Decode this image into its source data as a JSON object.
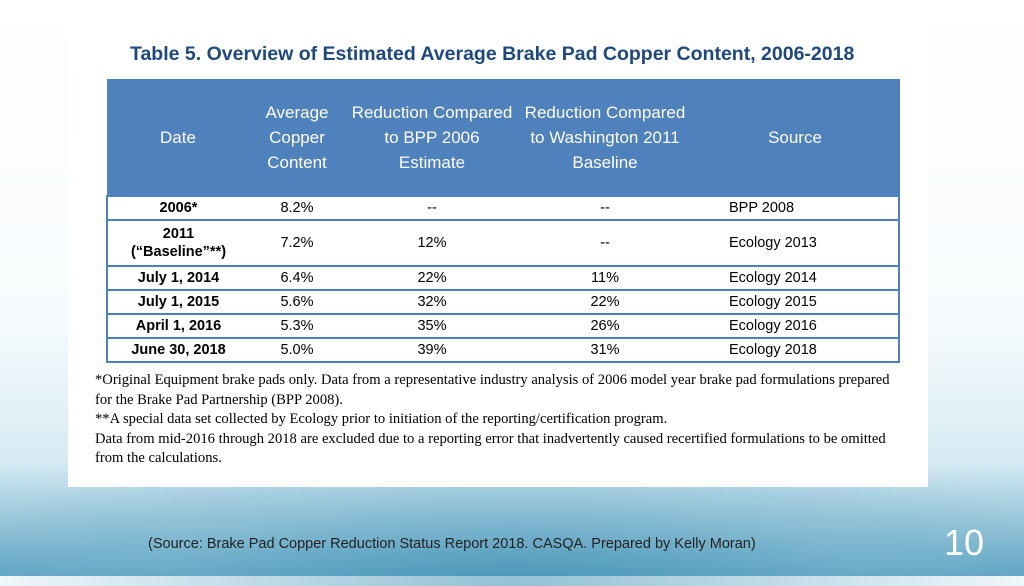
{
  "table": {
    "title": "Table 5.  Overview of Estimated Average Brake Pad Copper Content, 2006-2018",
    "headers": [
      "Date",
      "Average Copper Content",
      "Reduction Compared to BPP 2006 Estimate",
      "Reduction Compared to Washington 2011 Baseline",
      "Source"
    ],
    "rows": [
      {
        "date": "2006*",
        "date2": "",
        "avg": "8.2%",
        "red_bpp": "--",
        "red_wa": "--",
        "source": "BPP 2008"
      },
      {
        "date": "2011",
        "date2": "(“Baseline”**)",
        "avg": "7.2%",
        "red_bpp": "12%",
        "red_wa": "--",
        "source": "Ecology 2013"
      },
      {
        "date": "July 1, 2014",
        "date2": "",
        "avg": "6.4%",
        "red_bpp": "22%",
        "red_wa": "11%",
        "source": "Ecology 2014"
      },
      {
        "date": "July 1, 2015",
        "date2": "",
        "avg": "5.6%",
        "red_bpp": "32%",
        "red_wa": "22%",
        "source": "Ecology 2015"
      },
      {
        "date": "April 1, 2016",
        "date2": "",
        "avg": "5.3%",
        "red_bpp": "35%",
        "red_wa": "26%",
        "source": "Ecology 2016"
      },
      {
        "date": "June 30, 2018",
        "date2": "",
        "avg": "5.0%",
        "red_bpp": "39%",
        "red_wa": "31%",
        "source": "Ecology 2018"
      }
    ],
    "footnotes": [
      "*Original Equipment brake pads only. Data from a representative industry analysis of 2006 model year brake pad formulations prepared for the Brake Pad Partnership (BPP 2008).",
      "**A special data set collected by Ecology prior to initiation of the reporting/certification program.",
      "Data from mid-2016 through 2018 are excluded due to a reporting error that inadvertently caused recertified formulations to be omitted from the calculations."
    ]
  },
  "caption": "(Source: Brake Pad Copper Reduction Status Report 2018. CASQA. Prepared by Kelly Moran)",
  "page_number": "10",
  "colors": {
    "header_fill": "#4f81bd",
    "title_text": "#1f497d",
    "background_accent": "#5fa5c3"
  }
}
